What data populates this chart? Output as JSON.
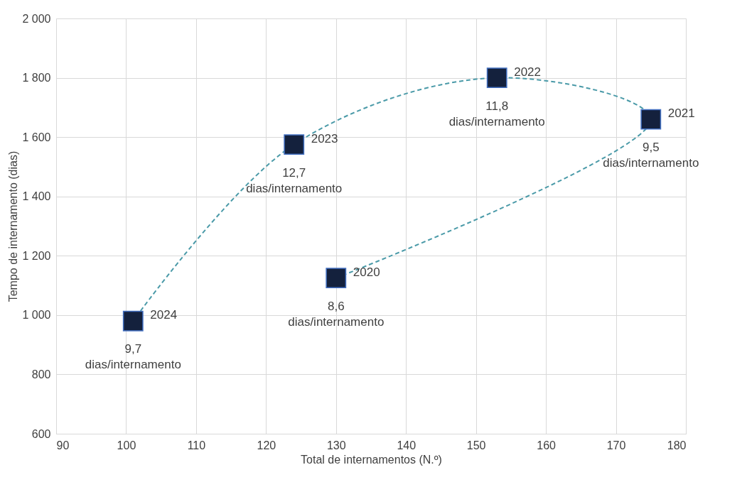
{
  "chart_data": {
    "type": "line",
    "xlabel": "Total de internamentos (N.º)",
    "ylabel": "Tempo de internamento (dias)",
    "xlim": [
      90,
      180
    ],
    "xticks": [
      90,
      100,
      110,
      120,
      130,
      140,
      150,
      160,
      170,
      180
    ],
    "ylim": [
      600,
      2000
    ],
    "yticks": [
      600,
      800,
      {
        "value": 1000,
        "label": "1 000"
      },
      {
        "value": 1200,
        "label": "1 200"
      },
      {
        "value": 1400,
        "label": "1 400"
      },
      {
        "value": 1600,
        "label": "1 600"
      },
      {
        "value": 1800,
        "label": "1 800"
      },
      {
        "value": 2000,
        "label": "2 000"
      }
    ],
    "grid": true,
    "marker": "square",
    "line_style": "dashed",
    "series": [
      {
        "color": "#4a9aa8",
        "colors": [
          "#14213d",
          "#14213d",
          "#14213d",
          "#14213d",
          "#14213d"
        ],
        "x": [
          130,
          175,
          153,
          124,
          101
        ],
        "values": [
          1125,
          1660,
          1800,
          1575,
          980
        ]
      }
    ],
    "annotations": [
      {
        "text": "2020",
        "x": 130,
        "y": 1125
      },
      {
        "text": "2021",
        "x": 175,
        "y": 1660
      },
      {
        "text": "2022",
        "x": 153,
        "y": 1800
      },
      {
        "text": "2023",
        "x": 124,
        "y": 1575
      },
      {
        "text": "2024",
        "x": 101,
        "y": 980
      },
      {
        "text": "8,6\ndias/internamento",
        "x": 130,
        "y": 1125
      },
      {
        "text": "9,5\ndias/internamento",
        "x": 175,
        "y": 1660
      },
      {
        "text": "11,8\ndias/internamento",
        "x": 153,
        "y": 1800
      },
      {
        "text": "12,7\ndias/internamento",
        "x": 124,
        "y": 1575
      },
      {
        "text": "9,7\ndias/internamento",
        "x": 101,
        "y": 980
      }
    ]
  }
}
